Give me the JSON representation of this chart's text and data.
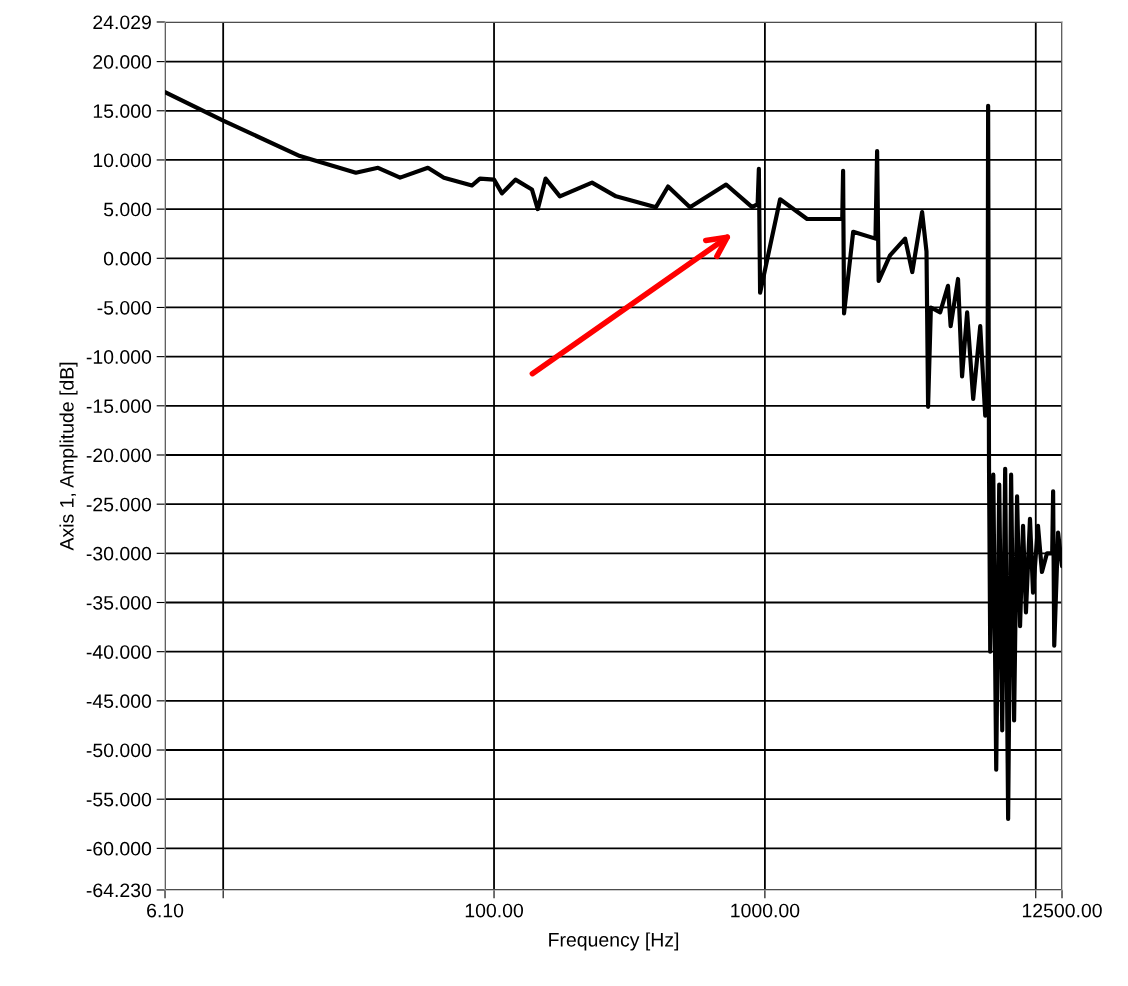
{
  "chart_data": {
    "type": "line",
    "xlabel": "Frequency [Hz]",
    "ylabel": "Axis 1, Amplitude [dB]",
    "log": "x",
    "grid": true,
    "marker": "none",
    "line_style": "solid",
    "xlim": [
      6.1,
      12500
    ],
    "ylim": [
      -64.23,
      24.029
    ],
    "xticks": [
      {
        "value": 6.1,
        "label": "6.10"
      },
      {
        "value": 10,
        "label": null
      },
      {
        "value": 100,
        "label": "100.00"
      },
      {
        "value": 1000,
        "label": "1000.00"
      },
      {
        "value": 10000,
        "label": null
      },
      {
        "value": 12500,
        "label": "12500.00"
      }
    ],
    "yticks": [
      {
        "value": -64.23,
        "label": "-64.230"
      },
      {
        "value": -60,
        "label": "-60.000"
      },
      {
        "value": -55,
        "label": "-55.000"
      },
      {
        "value": -50,
        "label": "-50.000"
      },
      {
        "value": -45,
        "label": "-45.000"
      },
      {
        "value": -40,
        "label": "-40.000"
      },
      {
        "value": -35,
        "label": "-35.000"
      },
      {
        "value": -30,
        "label": "-30.000"
      },
      {
        "value": -25,
        "label": "-25.000"
      },
      {
        "value": -20,
        "label": "-20.000"
      },
      {
        "value": -15,
        "label": "-15.000"
      },
      {
        "value": -10,
        "label": "-10.000"
      },
      {
        "value": -5,
        "label": "-5.000"
      },
      {
        "value": 0,
        "label": "0.000"
      },
      {
        "value": 5,
        "label": "5.000"
      },
      {
        "value": 10,
        "label": "10.000"
      },
      {
        "value": 15,
        "label": "15.000"
      },
      {
        "value": 20,
        "label": "20.000"
      },
      {
        "value": 24.029,
        "label": "24.029"
      }
    ],
    "series": [
      {
        "color": "#000000",
        "x": [
          6.1,
          10,
          19.2,
          30.9,
          37.3,
          45,
          57,
          65.3,
          82.9,
          88.7,
          100,
          107,
          120,
          138,
          145,
          155,
          175,
          230,
          282,
          396,
          439,
          529,
          719,
          897,
          940,
          950,
          960,
          1138,
          1432,
          1846,
          1930,
          1944,
          1960,
          2118,
          2560,
          2596,
          2630,
          2897,
          3294,
          3500,
          3805,
          3950,
          4004,
          4100,
          4436,
          4742,
          4850,
          5164,
          5345,
          5580,
          5874,
          6237,
          6508,
          6640,
          6670,
          6720,
          6790,
          6970,
          7145,
          7330,
          7520,
          7710,
          7907,
          8110,
          8318,
          8530,
          8750,
          8975,
          9200,
          9520,
          9770,
          10190,
          10540,
          11000,
          11500,
          11590,
          11700,
          12090,
          12500
        ],
        "values": [
          16.9,
          14.0,
          10.4,
          8.7,
          9.2,
          8.2,
          9.2,
          8.2,
          7.4,
          8.1,
          8.0,
          6.6,
          8.0,
          7.0,
          5.0,
          8.1,
          6.3,
          7.7,
          6.3,
          5.2,
          7.3,
          5.2,
          7.5,
          5.2,
          5.5,
          9.1,
          -3.5,
          6.0,
          4.0,
          4.0,
          4.0,
          8.9,
          -5.6,
          2.7,
          2.0,
          10.9,
          -2.3,
          0.3,
          2.0,
          -1.4,
          4.7,
          0.7,
          -15.1,
          -5.0,
          -5.5,
          -2.8,
          -6.9,
          -2.1,
          -12.0,
          -5.5,
          -14.3,
          -6.9,
          -16.0,
          -13,
          15.5,
          -21,
          -40,
          -22,
          -52,
          -23,
          -48,
          -21.4,
          -57.0,
          -22,
          -47,
          -24.2,
          -37.4,
          -27.2,
          -36,
          -26.5,
          -34,
          -27.2,
          -31.9,
          -30,
          -30,
          -23.7,
          -39.4,
          -27.9,
          -31.3
        ]
      }
    ]
  }
}
